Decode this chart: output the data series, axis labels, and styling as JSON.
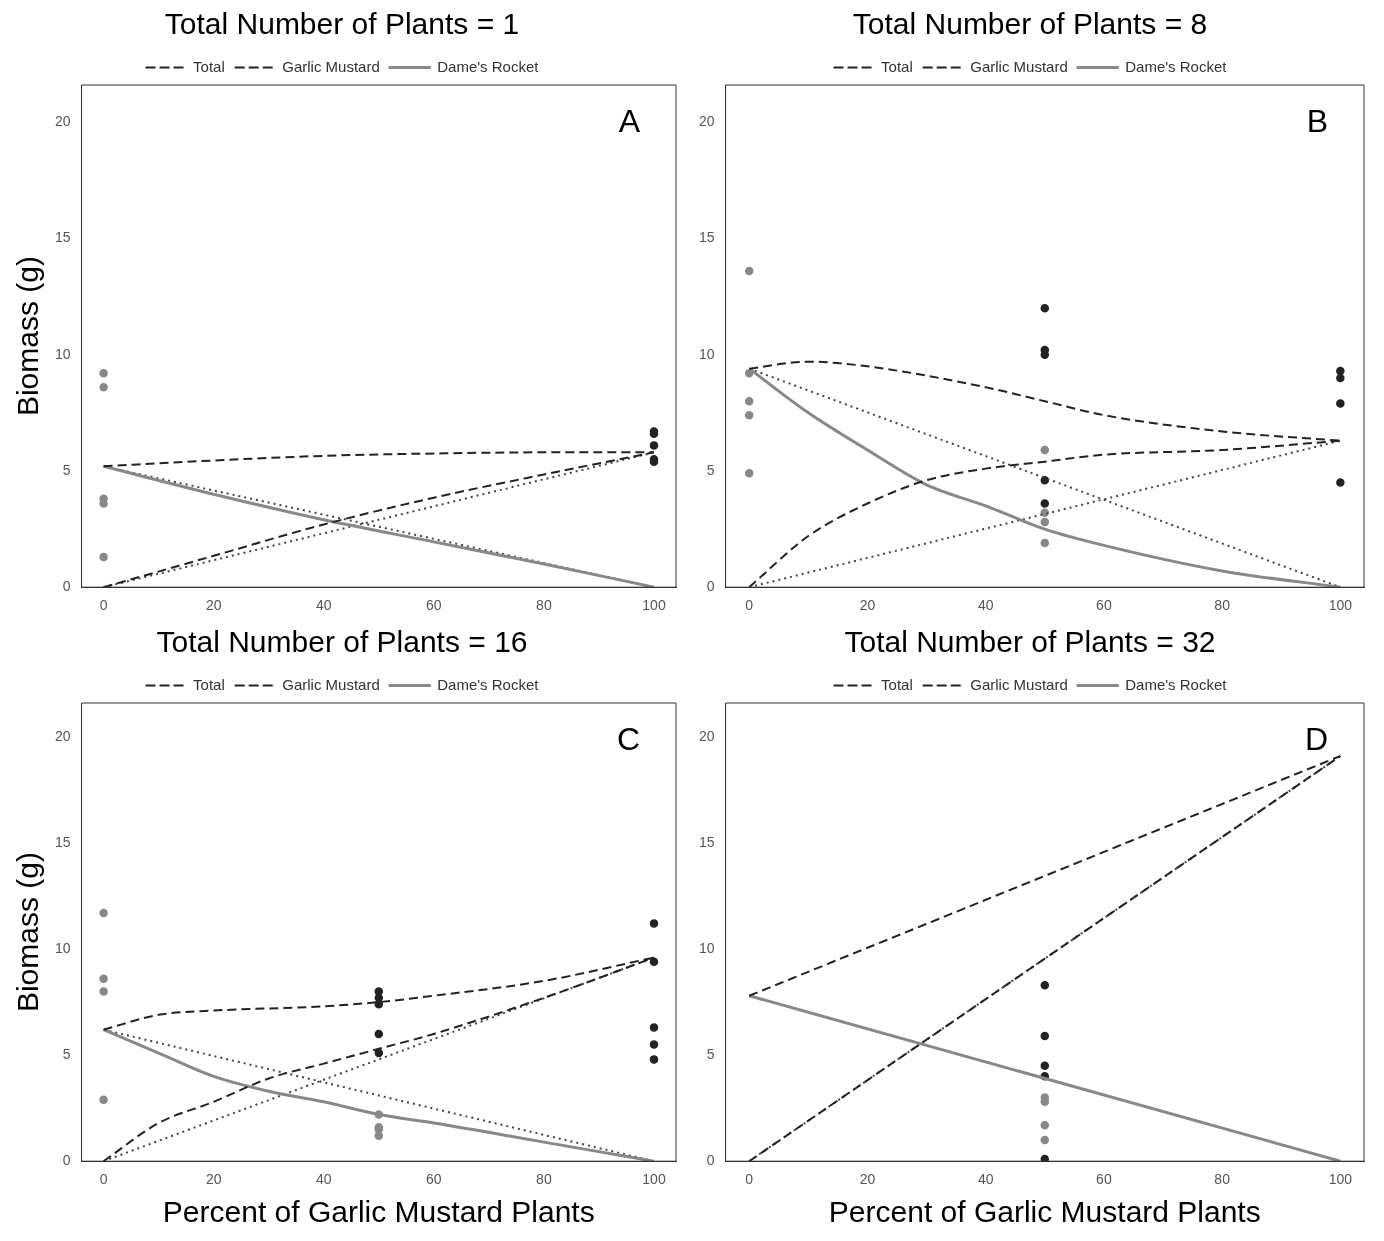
{
  "chart_data": [
    {
      "type": "line",
      "title": "Total Number of Plants = 1",
      "ylabel": "Biomass (g)",
      "annotations": [
        "A"
      ],
      "xlim": [
        -4,
        104
      ],
      "ylim": [
        0,
        21.6
      ],
      "xticks": [
        0,
        20,
        40,
        60,
        80,
        100
      ],
      "yticks": [
        0,
        5,
        10,
        15,
        20
      ],
      "grid": false,
      "legend": "top",
      "series": [
        {
          "name": "Total",
          "type": "line",
          "color": "#222222",
          "line_style": "dashed",
          "marker": "none",
          "x": [
            0,
            20,
            40,
            60,
            80,
            100
          ],
          "values": [
            5.2,
            5.45,
            5.65,
            5.75,
            5.8,
            5.8
          ]
        },
        {
          "name": "Garlic Mustard",
          "type": "line",
          "color": "#222222",
          "line_style": "dashed",
          "marker": "none",
          "x": [
            0,
            20,
            40,
            60,
            80,
            100
          ],
          "values": [
            0,
            1.35,
            2.7,
            3.85,
            4.85,
            5.8
          ]
        },
        {
          "name": "Dame's Rocket",
          "type": "line",
          "color": "#888888",
          "line_style": "solid",
          "marker": "none",
          "x": [
            0,
            20,
            40,
            60,
            80,
            100
          ],
          "values": [
            5.2,
            4.0,
            2.9,
            1.95,
            1.0,
            0
          ]
        },
        {
          "type": "line",
          "color": "#444444",
          "line_style": "dotted",
          "marker": "none",
          "x": [
            0,
            100
          ],
          "values": [
            0,
            5.8
          ]
        },
        {
          "type": "line",
          "color": "#444444",
          "line_style": "dotted",
          "marker": "none",
          "x": [
            0,
            100
          ],
          "values": [
            5.2,
            0
          ]
        },
        {
          "type": "scatter",
          "color": "#888888",
          "marker": "circle",
          "x": [
            0,
            0,
            0,
            0,
            0
          ],
          "values": [
            9.2,
            8.6,
            3.8,
            3.6,
            1.3
          ]
        },
        {
          "type": "scatter",
          "color": "#222222",
          "marker": "circle",
          "x": [
            100,
            100,
            100,
            100,
            100
          ],
          "values": [
            6.7,
            6.6,
            6.1,
            5.5,
            5.4
          ]
        }
      ]
    },
    {
      "type": "line",
      "title": "Total Number of Plants = 8",
      "annotations": [
        "B"
      ],
      "xlim": [
        -4,
        104
      ],
      "ylim": [
        0,
        21.6
      ],
      "xticks": [
        0,
        20,
        40,
        60,
        80,
        100
      ],
      "yticks": [
        0,
        5,
        10,
        15,
        20
      ],
      "grid": false,
      "legend": "top",
      "series": [
        {
          "name": "Total",
          "type": "line",
          "color": "#222222",
          "line_style": "dashed",
          "marker": "none",
          "x": [
            0,
            10,
            20,
            40,
            50,
            60,
            80,
            100
          ],
          "values": [
            9.4,
            9.7,
            9.5,
            8.6,
            8.0,
            7.4,
            6.7,
            6.3
          ]
        },
        {
          "name": "Garlic Mustard",
          "type": "line",
          "color": "#222222",
          "line_style": "dashed",
          "marker": "none",
          "x": [
            0,
            10,
            20,
            30,
            40,
            50,
            60,
            80,
            100
          ],
          "values": [
            0,
            2.2,
            3.6,
            4.6,
            5.1,
            5.4,
            5.7,
            5.9,
            6.3
          ]
        },
        {
          "name": "Dame's Rocket",
          "type": "line",
          "color": "#888888",
          "line_style": "solid",
          "marker": "none",
          "x": [
            0,
            10,
            20,
            30,
            40,
            50,
            60,
            80,
            100
          ],
          "values": [
            9.4,
            7.5,
            5.9,
            4.4,
            3.5,
            2.5,
            1.8,
            0.7,
            0
          ]
        },
        {
          "type": "line",
          "color": "#444444",
          "line_style": "dotted",
          "marker": "none",
          "x": [
            0,
            100
          ],
          "values": [
            9.4,
            0
          ]
        },
        {
          "type": "line",
          "color": "#444444",
          "line_style": "dotted",
          "marker": "none",
          "x": [
            0,
            100
          ],
          "values": [
            0,
            6.3
          ]
        },
        {
          "type": "scatter",
          "color": "#888888",
          "marker": "circle",
          "x": [
            0,
            0,
            0,
            0,
            0,
            50,
            50,
            50,
            50
          ],
          "values": [
            13.6,
            9.2,
            8.0,
            7.4,
            4.9,
            5.9,
            3.2,
            2.8,
            1.9
          ]
        },
        {
          "type": "scatter",
          "color": "#222222",
          "marker": "circle",
          "x": [
            50,
            50,
            50,
            50,
            50,
            100,
            100,
            100,
            100
          ],
          "values": [
            12.0,
            10.2,
            10.0,
            4.6,
            3.6,
            9.3,
            9.0,
            7.9,
            4.5
          ]
        }
      ]
    },
    {
      "type": "line",
      "title": "Total Number of Plants = 16",
      "xlabel": "Percent of Garlic Mustard Plants",
      "ylabel": "Biomass (g)",
      "annotations": [
        "C"
      ],
      "xlim": [
        -4,
        104
      ],
      "ylim": [
        0,
        21.6
      ],
      "xticks": [
        0,
        20,
        40,
        60,
        80,
        100
      ],
      "yticks": [
        0,
        5,
        10,
        15,
        20
      ],
      "grid": false,
      "legend": "top",
      "series": [
        {
          "name": "Total",
          "type": "line",
          "color": "#222222",
          "line_style": "dashed",
          "marker": "none",
          "x": [
            0,
            10,
            20,
            40,
            50,
            60,
            80,
            100
          ],
          "values": [
            6.2,
            6.9,
            7.1,
            7.3,
            7.5,
            7.8,
            8.5,
            9.6
          ]
        },
        {
          "name": "Garlic Mustard",
          "type": "line",
          "color": "#222222",
          "line_style": "dashed",
          "marker": "none",
          "x": [
            0,
            10,
            20,
            30,
            40,
            50,
            60,
            80,
            100
          ],
          "values": [
            0,
            1.8,
            2.8,
            3.9,
            4.6,
            5.3,
            6.0,
            7.7,
            9.6
          ]
        },
        {
          "name": "Dame's Rocket",
          "type": "line",
          "color": "#888888",
          "line_style": "solid",
          "marker": "none",
          "x": [
            0,
            10,
            20,
            30,
            40,
            50,
            60,
            80,
            100
          ],
          "values": [
            6.2,
            5.1,
            4.0,
            3.3,
            2.8,
            2.2,
            1.8,
            0.9,
            0
          ]
        },
        {
          "type": "line",
          "color": "#444444",
          "line_style": "dotted",
          "marker": "none",
          "x": [
            0,
            100
          ],
          "values": [
            6.2,
            0
          ]
        },
        {
          "type": "line",
          "color": "#444444",
          "line_style": "dotted",
          "marker": "none",
          "x": [
            0,
            100
          ],
          "values": [
            0,
            9.6
          ]
        },
        {
          "type": "scatter",
          "color": "#888888",
          "marker": "circle",
          "x": [
            0,
            0,
            0,
            0,
            50,
            50,
            50,
            50
          ],
          "values": [
            11.7,
            8.6,
            8.0,
            2.9,
            2.2,
            1.6,
            1.5,
            1.2
          ]
        },
        {
          "type": "scatter",
          "color": "#222222",
          "marker": "circle",
          "x": [
            50,
            50,
            50,
            50,
            50,
            100,
            100,
            100,
            100,
            100
          ],
          "values": [
            8.0,
            7.7,
            7.4,
            6.0,
            5.1,
            11.2,
            9.4,
            6.3,
            5.5,
            4.8
          ]
        }
      ]
    },
    {
      "type": "line",
      "title": "Total Number of Plants = 32",
      "xlabel": "Percent of Garlic Mustard Plants",
      "annotations": [
        "D"
      ],
      "xlim": [
        -4,
        104
      ],
      "ylim": [
        0,
        21.6
      ],
      "xticks": [
        0,
        20,
        40,
        60,
        80,
        100
      ],
      "yticks": [
        0,
        5,
        10,
        15,
        20
      ],
      "grid": false,
      "legend": "top",
      "series": [
        {
          "name": "Total",
          "type": "line",
          "color": "#222222",
          "line_style": "dashed",
          "marker": "none",
          "x": [
            0,
            100
          ],
          "values": [
            7.8,
            19.1
          ]
        },
        {
          "name": "Garlic Mustard",
          "type": "line",
          "color": "#222222",
          "line_style": "dashed",
          "marker": "none",
          "x": [
            0,
            100
          ],
          "values": [
            0,
            19.1
          ]
        },
        {
          "name": "Dame's Rocket",
          "type": "line",
          "color": "#888888",
          "line_style": "solid",
          "marker": "none",
          "x": [
            0,
            100
          ],
          "values": [
            7.8,
            0
          ]
        },
        {
          "type": "line",
          "color": "#444444",
          "line_style": "dotted",
          "marker": "none",
          "x": [
            0,
            100
          ],
          "values": [
            0,
            19.1
          ]
        },
        {
          "type": "scatter",
          "color": "#888888",
          "marker": "circle",
          "x": [
            50,
            50,
            50,
            50
          ],
          "values": [
            3.0,
            2.8,
            1.7,
            1.0
          ]
        },
        {
          "type": "scatter",
          "color": "#222222",
          "marker": "circle",
          "x": [
            50,
            50,
            50,
            50,
            50
          ],
          "values": [
            8.3,
            5.9,
            4.5,
            4.0,
            0.1
          ]
        }
      ]
    }
  ]
}
